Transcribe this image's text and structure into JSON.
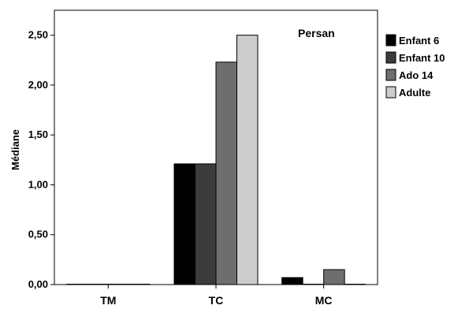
{
  "chart_data": {
    "type": "bar",
    "title": "",
    "annotation": "Persan",
    "xlabel": "",
    "ylabel": "Médiane",
    "categories": [
      "TM",
      "TC",
      "MC"
    ],
    "yticks": [
      "0,00",
      "0,50",
      "1,00",
      "1,50",
      "2,00",
      "2,50"
    ],
    "ylim": [
      0,
      2.75
    ],
    "grid": false,
    "legend_position": "right",
    "series": [
      {
        "name": "Enfant 6",
        "color": "#000000",
        "values": [
          0,
          1.21,
          0.07
        ]
      },
      {
        "name": "Enfant 10",
        "color": "#3b3b3b",
        "values": [
          0,
          1.21,
          0
        ]
      },
      {
        "name": "Ado 14",
        "color": "#6e6e6e",
        "values": [
          0,
          2.23,
          0.15
        ]
      },
      {
        "name": "Adulte",
        "color": "#cccccc",
        "values": [
          0,
          2.5,
          0
        ]
      }
    ]
  }
}
